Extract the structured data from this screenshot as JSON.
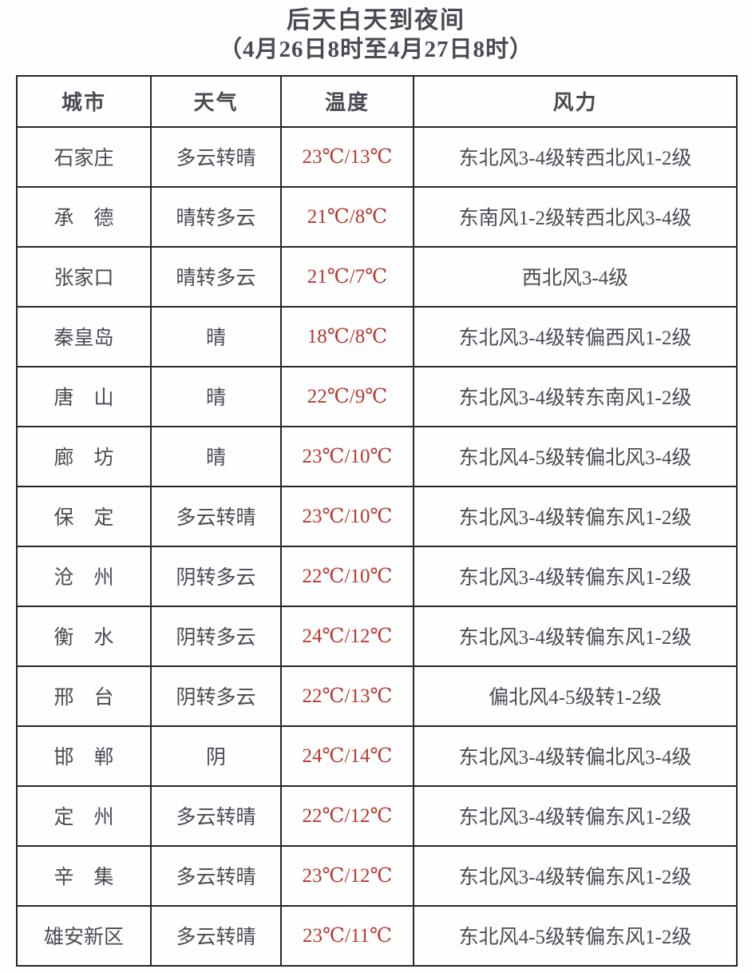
{
  "title": {
    "line1": "后天白天到夜间",
    "line2": "（4月26日8时至4月27日8时）"
  },
  "colors": {
    "temperature_text": "#b53a32",
    "body_text": "#4a4a54",
    "border": "#26262b",
    "background": "#fefefe"
  },
  "table": {
    "headers": {
      "city": "城市",
      "weather": "天气",
      "temp": "温度",
      "wind": "风力"
    },
    "rows": [
      {
        "city": "石家庄",
        "weather": "多云转晴",
        "temp": "23℃/13℃",
        "wind": "东北风3-4级转西北风1-2级"
      },
      {
        "city": "承　德",
        "weather": "晴转多云",
        "temp": "21℃/8℃",
        "wind": "东南风1-2级转西北风3-4级"
      },
      {
        "city": "张家口",
        "weather": "晴转多云",
        "temp": "21℃/7℃",
        "wind": "西北风3-4级"
      },
      {
        "city": "秦皇岛",
        "weather": "晴",
        "temp": "18℃/8℃",
        "wind": "东北风3-4级转偏西风1-2级"
      },
      {
        "city": "唐　山",
        "weather": "晴",
        "temp": "22℃/9℃",
        "wind": "东北风3-4级转东南风1-2级"
      },
      {
        "city": "廊　坊",
        "weather": "晴",
        "temp": "23℃/10℃",
        "wind": "东北风4-5级转偏北风3-4级"
      },
      {
        "city": "保　定",
        "weather": "多云转晴",
        "temp": "23℃/10℃",
        "wind": "东北风3-4级转偏东风1-2级"
      },
      {
        "city": "沧　州",
        "weather": "阴转多云",
        "temp": "22℃/10℃",
        "wind": "东北风3-4级转偏东风1-2级"
      },
      {
        "city": "衡　水",
        "weather": "阴转多云",
        "temp": "24℃/12℃",
        "wind": "东北风3-4级转偏东风1-2级"
      },
      {
        "city": "邢　台",
        "weather": "阴转多云",
        "temp": "22℃/13℃",
        "wind": "偏北风4-5级转1-2级"
      },
      {
        "city": "邯　郸",
        "weather": "阴",
        "temp": "24℃/14℃",
        "wind": "东北风3-4级转偏北风3-4级"
      },
      {
        "city": "定　州",
        "weather": "多云转晴",
        "temp": "22℃/12℃",
        "wind": "东北风3-4级转偏东风1-2级"
      },
      {
        "city": "辛　集",
        "weather": "多云转晴",
        "temp": "23℃/12℃",
        "wind": "东北风3-4级转偏东风1-2级"
      },
      {
        "city": "雄安新区",
        "weather": "多云转晴",
        "temp": "23℃/11℃",
        "wind": "东北风4-5级转偏东风1-2级"
      }
    ]
  }
}
